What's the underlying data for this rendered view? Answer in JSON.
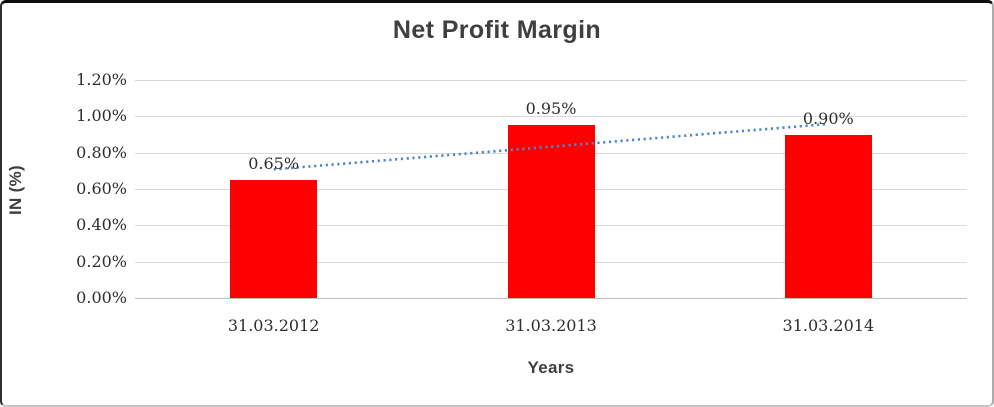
{
  "chart_data": {
    "type": "bar",
    "title": "Net Profit Margin",
    "xlabel": "Years",
    "ylabel": "IN (%)",
    "categories": [
      "31.03.2012",
      "31.03.2013",
      "31.03.2014"
    ],
    "values": [
      0.65,
      0.95,
      0.9
    ],
    "data_labels": [
      "0.65%",
      "0.95%",
      "0.90%"
    ],
    "y_ticks": [
      "1.20%",
      "1.00%",
      "0.80%",
      "0.60%",
      "0.40%",
      "0.20%",
      "0.00%"
    ],
    "ylim": [
      0,
      1.2
    ],
    "grid": true,
    "legend": "none",
    "bar_color": "#ff0000",
    "text_color": "#3f3f3f",
    "gridline_color": "#d9d9d9",
    "trendline": {
      "type": "linear",
      "style": "dotted",
      "color": "#4e86c8",
      "start_value": 0.708,
      "end_value": 0.958
    }
  }
}
